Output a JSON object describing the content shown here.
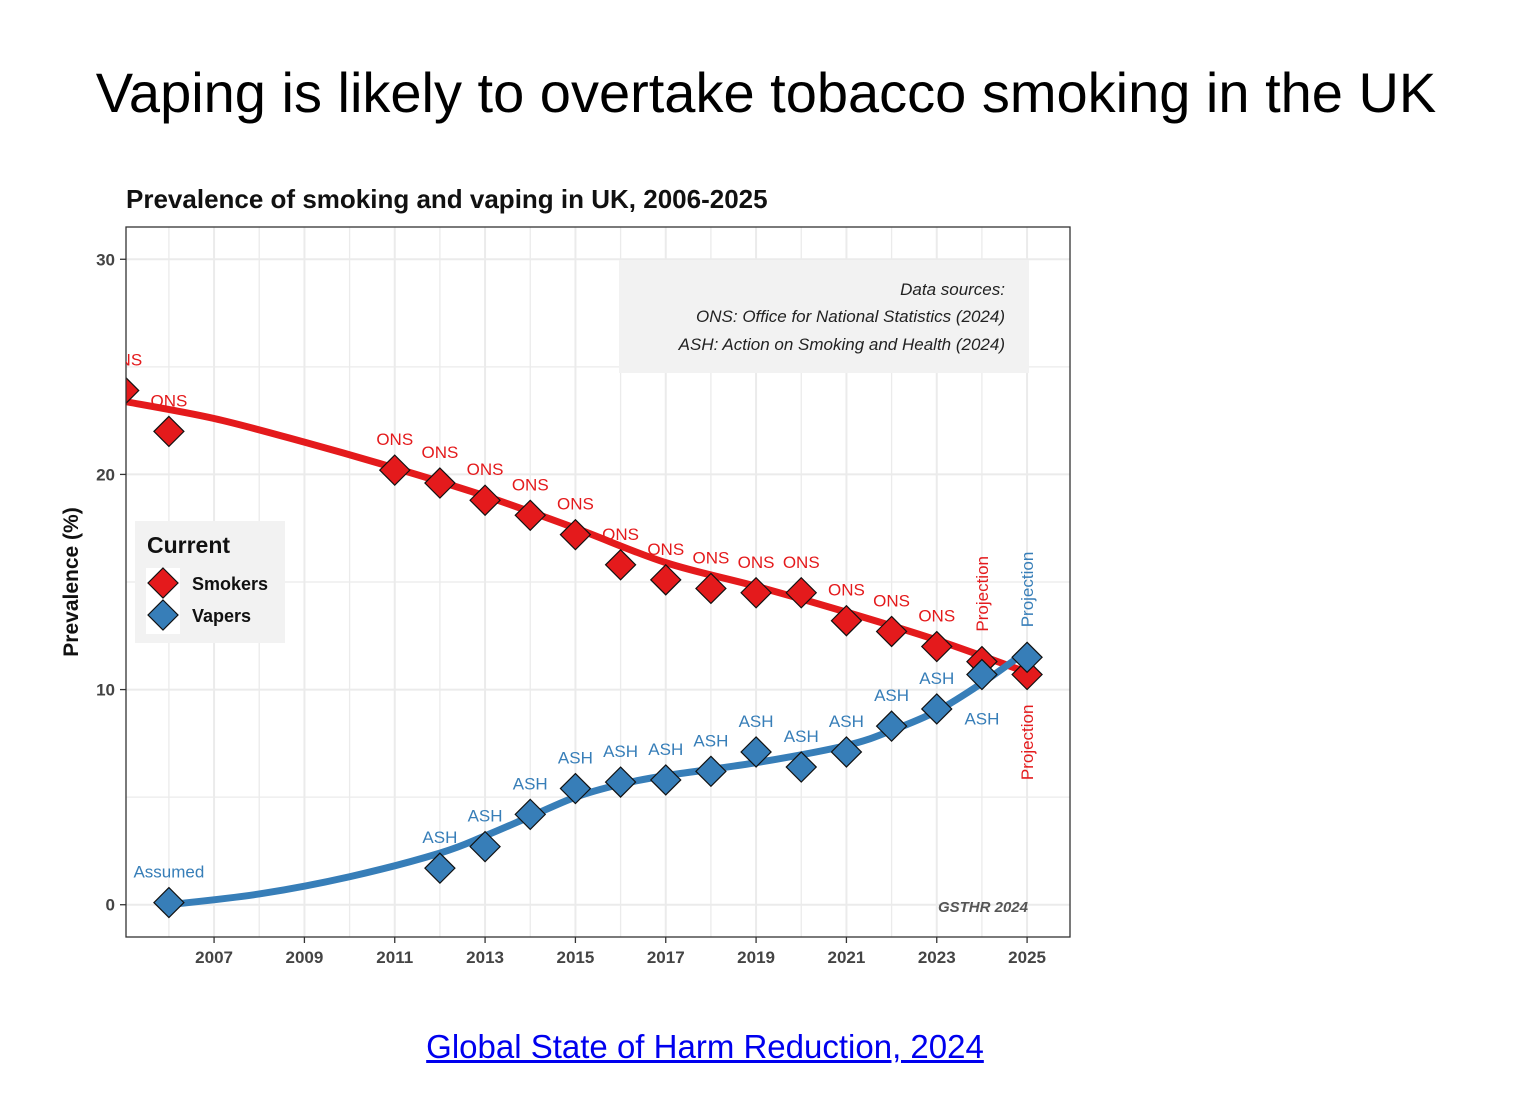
{
  "slide": {
    "title": "Vaping is likely to overtake tobacco smoking in the UK",
    "source_link": "Global State of Harm Reduction, 2024"
  },
  "colors": {
    "smokers": "#e41a1c",
    "vapers": "#377eb8",
    "grid": "#ebebeb",
    "legend_bg": "#f2f2f2"
  },
  "chart_data": {
    "type": "scatter",
    "title": "Prevalence of smoking and vaping in UK, 2006-2025",
    "xlabel": "",
    "ylabel": "Prevalence (%)",
    "xlim": [
      2005.05,
      2025.95
    ],
    "ylim": [
      -1.5,
      31.5
    ],
    "xticks": [
      2007,
      2009,
      2011,
      2013,
      2015,
      2017,
      2019,
      2021,
      2023,
      2025
    ],
    "yticks": [
      0,
      10,
      20,
      30
    ],
    "grid": true,
    "legend": {
      "title": "Current",
      "placement": "left-middle",
      "entries": [
        "Smokers",
        "Vapers"
      ]
    },
    "annotation_box": {
      "lines": [
        "Data sources:",
        "ONS: Office for National Statistics (2024)",
        "ASH: Action on Smoking and Health (2024)"
      ],
      "placement": "top-right"
    },
    "watermark": "GSTHR 2024",
    "series": [
      {
        "name": "Smokers",
        "x": [
          2005,
          2006,
          2011,
          2012,
          2013,
          2014,
          2015,
          2016,
          2017,
          2018,
          2019,
          2020,
          2021,
          2022,
          2023,
          2024,
          2025
        ],
        "y": [
          23.9,
          22.0,
          20.2,
          19.6,
          18.8,
          18.1,
          17.2,
          15.8,
          15.1,
          14.7,
          14.5,
          14.5,
          13.2,
          12.7,
          12.0,
          11.3,
          10.7
        ],
        "labels": [
          "ONS",
          "ONS",
          "ONS",
          "ONS",
          "ONS",
          "ONS",
          "ONS",
          "ONS",
          "ONS",
          "ONS",
          "ONS",
          "ONS",
          "ONS",
          "ONS",
          "ONS",
          "Projection",
          "Projection"
        ],
        "trend_x": [
          2005,
          2007,
          2009,
          2011,
          2013,
          2015,
          2017,
          2019,
          2021,
          2023,
          2025
        ],
        "trend_y": [
          23.4,
          22.6,
          21.5,
          20.3,
          19.0,
          17.5,
          15.9,
          14.8,
          13.6,
          12.3,
          10.8
        ]
      },
      {
        "name": "Vapers",
        "x": [
          2006,
          2012,
          2013,
          2014,
          2015,
          2016,
          2017,
          2018,
          2019,
          2020,
          2021,
          2022,
          2023,
          2024,
          2025
        ],
        "y": [
          0.1,
          1.7,
          2.7,
          4.2,
          5.4,
          5.7,
          5.8,
          6.2,
          7.1,
          6.4,
          7.1,
          8.3,
          9.1,
          10.7,
          11.5
        ],
        "labels": [
          "Assumed",
          "ASH",
          "ASH",
          "ASH",
          "ASH",
          "ASH",
          "ASH",
          "ASH",
          "ASH",
          "ASH",
          "ASH",
          "ASH",
          "ASH",
          "ASH",
          "Projection"
        ],
        "trend_x": [
          2006,
          2008,
          2010,
          2012,
          2013,
          2014,
          2015,
          2016,
          2017,
          2019,
          2021,
          2022,
          2023,
          2024,
          2025
        ],
        "trend_y": [
          0,
          0.5,
          1.3,
          2.4,
          3.2,
          4.1,
          5.0,
          5.6,
          6.0,
          6.6,
          7.4,
          8.1,
          9.0,
          10.3,
          11.8
        ]
      }
    ]
  }
}
